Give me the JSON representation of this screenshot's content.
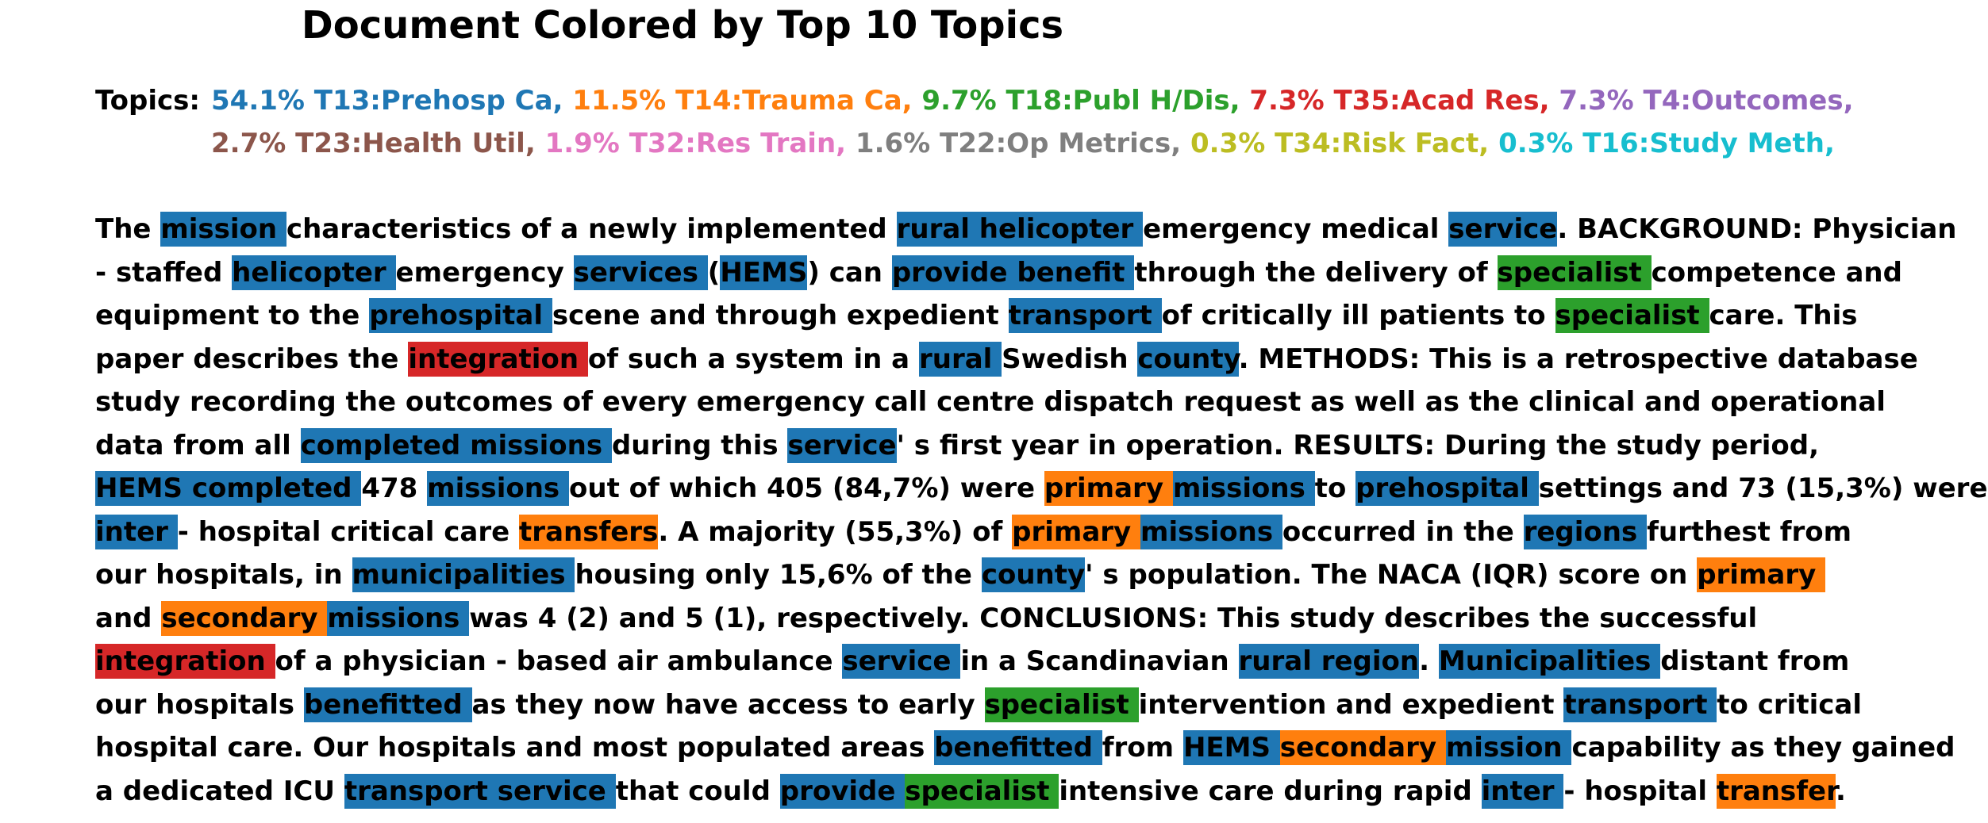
{
  "title": "Document Colored by Top 10 Topics",
  "topics_label": "Topics:",
  "colors": {
    "T13": "#1f77b4",
    "T14": "#ff7f0e",
    "T18": "#2ca02c",
    "T35": "#d62728",
    "T4": "#9467bd",
    "T23": "#8c564b",
    "T32": "#e377c2",
    "T22": "#7f7f7f",
    "T34": "#bcbd22",
    "T16": "#17becf"
  },
  "topics": [
    {
      "text": "54.1% T13:Prehosp Ca,",
      "color": "#1f77b4",
      "row": 1
    },
    {
      "text": "11.5% T14:Trauma Ca,",
      "color": "#ff7f0e",
      "row": 1
    },
    {
      "text": "9.7% T18:Publ H/Dis,",
      "color": "#2ca02c",
      "row": 1
    },
    {
      "text": "7.3% T35:Acad Res,",
      "color": "#d62728",
      "row": 1
    },
    {
      "text": "7.3% T4:Outcomes,",
      "color": "#9467bd",
      "row": 1
    },
    {
      "text": "2.7% T23:Health Util,",
      "color": "#8c564b",
      "row": 2
    },
    {
      "text": "1.9% T32:Res Train,",
      "color": "#e377c2",
      "row": 2
    },
    {
      "text": "1.6% T22:Op Metrics,",
      "color": "#7f7f7f",
      "row": 2
    },
    {
      "text": "0.3% T34:Risk Fact,",
      "color": "#bcbd22",
      "row": 2
    },
    {
      "text": "0.3% T16:Study Meth,",
      "color": "#17becf",
      "row": 2
    }
  ],
  "lines": [
    [
      [
        "The ",
        ""
      ],
      [
        "mission ",
        "T13"
      ],
      [
        "characteristics of a newly implemented ",
        ""
      ],
      [
        "rural helicopter ",
        "T13"
      ],
      [
        "emergency medical ",
        ""
      ],
      [
        "service",
        "T13"
      ],
      [
        ". BACKGROUND: Physician",
        ""
      ]
    ],
    [
      [
        "- staffed ",
        ""
      ],
      [
        "helicopter ",
        "T13"
      ],
      [
        "emergency ",
        ""
      ],
      [
        "services ",
        "T13"
      ],
      [
        "(",
        ""
      ],
      [
        "HEMS",
        "T13"
      ],
      [
        ") can ",
        ""
      ],
      [
        "provide benefit ",
        "T13"
      ],
      [
        "through the delivery of ",
        ""
      ],
      [
        "specialist ",
        "T18"
      ],
      [
        "competence and",
        ""
      ]
    ],
    [
      [
        "equipment to the ",
        ""
      ],
      [
        "prehospital ",
        "T13"
      ],
      [
        "scene and through expedient ",
        ""
      ],
      [
        "transport ",
        "T13"
      ],
      [
        "of critically ill patients to ",
        ""
      ],
      [
        "specialist ",
        "T18"
      ],
      [
        "care. This",
        ""
      ]
    ],
    [
      [
        "paper describes the ",
        ""
      ],
      [
        "integration ",
        "T35"
      ],
      [
        "of such a system in a ",
        ""
      ],
      [
        "rural ",
        "T13"
      ],
      [
        "Swedish ",
        ""
      ],
      [
        "county",
        "T13"
      ],
      [
        ". METHODS: This is a retrospective database",
        ""
      ]
    ],
    [
      [
        "study recording the outcomes of every emergency call centre dispatch request as well as the clinical and operational",
        ""
      ]
    ],
    [
      [
        "data from all ",
        ""
      ],
      [
        "completed missions ",
        "T13"
      ],
      [
        "during this ",
        ""
      ],
      [
        "service",
        "T13"
      ],
      [
        "' s first year in operation. RESULTS: During the study period,",
        ""
      ]
    ],
    [
      [
        "HEMS completed ",
        "T13"
      ],
      [
        "478 ",
        ""
      ],
      [
        "missions ",
        "T13"
      ],
      [
        "out of which 405 (84,7%) were ",
        ""
      ],
      [
        "primary ",
        "T14"
      ],
      [
        "missions ",
        "T13"
      ],
      [
        "to ",
        ""
      ],
      [
        "prehospital ",
        "T13"
      ],
      [
        "settings and 73 (15,3%) were",
        ""
      ]
    ],
    [
      [
        "inter ",
        "T13"
      ],
      [
        "- hospital critical care ",
        ""
      ],
      [
        "transfers",
        "T14"
      ],
      [
        ". A majority (55,3%) of ",
        ""
      ],
      [
        "primary ",
        "T14"
      ],
      [
        "missions ",
        "T13"
      ],
      [
        "occurred in the ",
        ""
      ],
      [
        "regions ",
        "T13"
      ],
      [
        "furthest from",
        ""
      ]
    ],
    [
      [
        "our hospitals, in ",
        ""
      ],
      [
        "municipalities ",
        "T13"
      ],
      [
        "housing only 15,6% of the ",
        ""
      ],
      [
        "county",
        "T13"
      ],
      [
        "' s population. The NACA (IQR) score on ",
        ""
      ],
      [
        "primary ",
        "T14"
      ]
    ],
    [
      [
        "and ",
        ""
      ],
      [
        "secondary ",
        "T14"
      ],
      [
        "missions ",
        "T13"
      ],
      [
        "was 4 (2) and 5 (1), respectively. CONCLUSIONS: This study describes the successful",
        ""
      ]
    ],
    [
      [
        "integration ",
        "T35"
      ],
      [
        "of a physician - based air ambulance ",
        ""
      ],
      [
        "service ",
        "T13"
      ],
      [
        "in a Scandinavian ",
        ""
      ],
      [
        "rural region",
        "T13"
      ],
      [
        ". ",
        ""
      ],
      [
        "Municipalities ",
        "T13"
      ],
      [
        "distant from",
        ""
      ]
    ],
    [
      [
        "our hospitals ",
        ""
      ],
      [
        "benefitted ",
        "T13"
      ],
      [
        "as they now have access to early ",
        ""
      ],
      [
        "specialist ",
        "T18"
      ],
      [
        "intervention and expedient ",
        ""
      ],
      [
        "transport ",
        "T13"
      ],
      [
        "to critical",
        ""
      ]
    ],
    [
      [
        "hospital care. Our hospitals and most populated areas ",
        ""
      ],
      [
        "benefitted ",
        "T13"
      ],
      [
        "from ",
        ""
      ],
      [
        "HEMS ",
        "T13"
      ],
      [
        "secondary ",
        "T14"
      ],
      [
        "mission ",
        "T13"
      ],
      [
        "capability as they gained",
        ""
      ]
    ],
    [
      [
        "a dedicated ICU ",
        ""
      ],
      [
        "transport service ",
        "T13"
      ],
      [
        "that could ",
        ""
      ],
      [
        "provide ",
        "T13"
      ],
      [
        "specialist ",
        "T18"
      ],
      [
        "intensive care during rapid ",
        ""
      ],
      [
        "inter ",
        "T13"
      ],
      [
        "- hospital ",
        ""
      ],
      [
        "transfer",
        "T14"
      ],
      [
        ".",
        ""
      ]
    ]
  ]
}
